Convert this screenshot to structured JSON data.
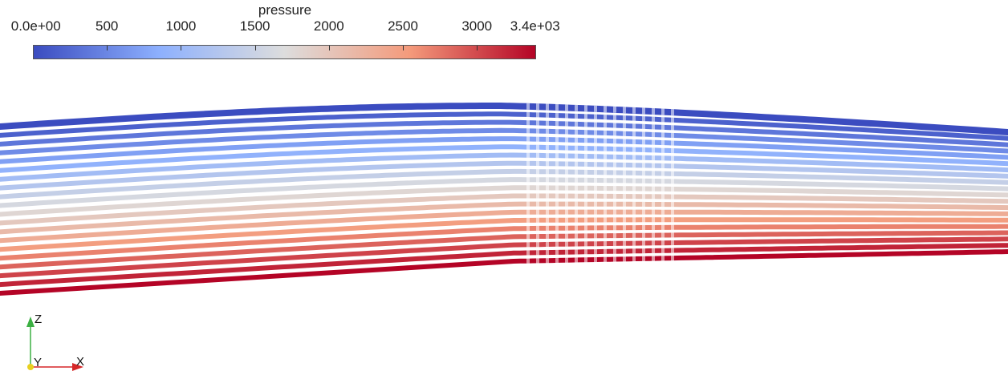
{
  "colorbar": {
    "title": "pressure",
    "range": [
      0,
      3400
    ],
    "tick_values": [
      0,
      500,
      1000,
      1500,
      2000,
      2500,
      3000,
      3400
    ],
    "tick_labels": [
      "0.0e+00",
      "500",
      "1000",
      "1500",
      "2000",
      "2500",
      "3000",
      "3.4e+03"
    ],
    "colormap": [
      "#3b4cc0",
      "#8db0fe",
      "#dddddd",
      "#f49a7b",
      "#b40426"
    ]
  },
  "orientation_axes": {
    "z_label": "Z",
    "y_label": "Y",
    "x_label": "X",
    "z_color": "#3cb043",
    "x_color": "#d62728",
    "y_color": "#e8d020"
  },
  "field": {
    "layer_count": 20,
    "pressure_min": 0,
    "pressure_max": 3400
  }
}
